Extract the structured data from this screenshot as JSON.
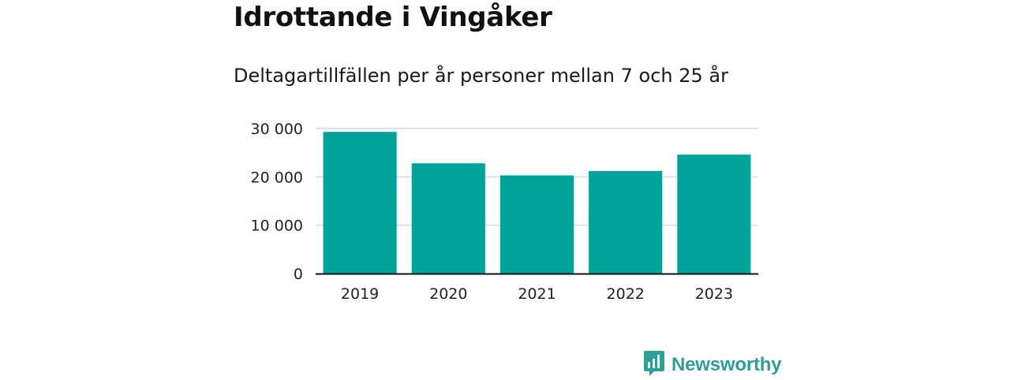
{
  "header": {
    "title": "Idrottande i Vingåker",
    "subtitle": "Deltagartillfällen per år personer mellan 7 och 25 år"
  },
  "chart_data": {
    "type": "bar",
    "categories": [
      "2019",
      "2020",
      "2021",
      "2022",
      "2023"
    ],
    "values": [
      29300,
      22800,
      20300,
      21200,
      24600
    ],
    "y_ticks": [
      0,
      10000,
      20000,
      30000
    ],
    "y_tick_labels": [
      "0",
      "10 000",
      "20 000",
      "30 000"
    ],
    "ylim": [
      0,
      30000
    ],
    "xlabel": "",
    "ylabel": "",
    "grid": true,
    "bar_color": "#00a39a"
  },
  "footer": {
    "brand": "Newsworthy",
    "brand_color": "#2f9e98",
    "logo_icon": "bar-chart-speech-bubble"
  }
}
